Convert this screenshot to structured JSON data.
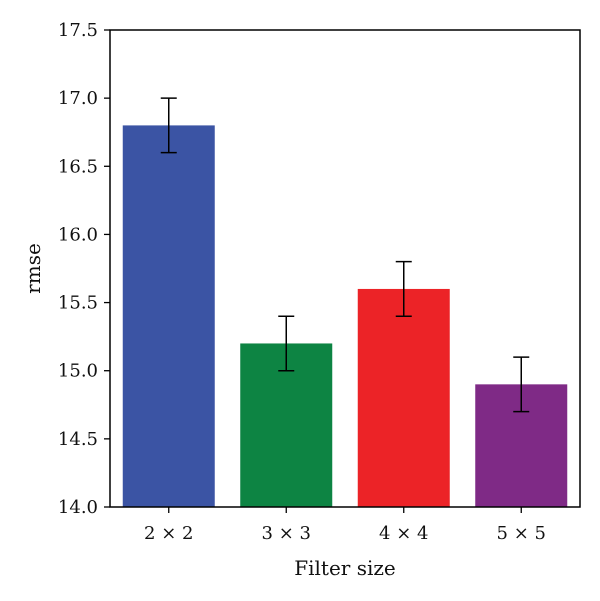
{
  "chart_data": {
    "type": "bar",
    "categories": [
      "2 × 2",
      "3 × 3",
      "4 × 4",
      "5 × 5"
    ],
    "values": [
      16.8,
      15.2,
      15.6,
      14.9
    ],
    "error_bars": {
      "lower": [
        16.6,
        15.0,
        15.4,
        14.7
      ],
      "upper": [
        17.0,
        15.4,
        15.8,
        15.1
      ]
    },
    "colors": [
      "#3b54a4",
      "#0d8443",
      "#ec2327",
      "#7f2a86"
    ],
    "xlabel": "Filter size",
    "ylabel": "rmse",
    "ylim": [
      14.0,
      17.5
    ],
    "yticks": [
      14.0,
      14.5,
      15.0,
      15.5,
      16.0,
      16.5,
      17.0,
      17.5
    ],
    "ytick_labels": [
      "14.0",
      "14.5",
      "15.0",
      "15.5",
      "16.0",
      "16.5",
      "17.0",
      "17.5"
    ],
    "grid": false,
    "legend": "none"
  }
}
